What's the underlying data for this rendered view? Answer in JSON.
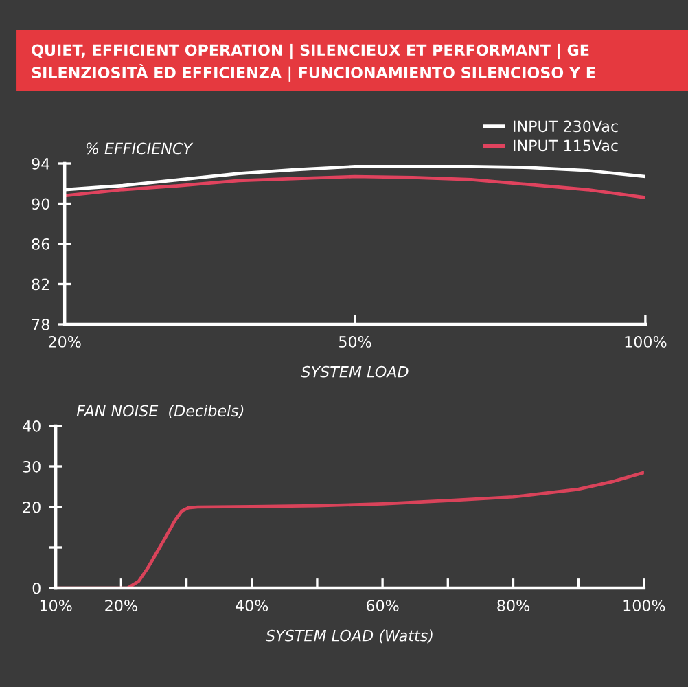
{
  "chart_data": [
    {
      "type": "line",
      "title": "QUIET, EFFICIENT OPERATION | SILENCIEUX ET PERFORMANT | GE",
      "subtitle": "SILENZIOSITÀ ED EFFICIENZA | FUNCIONAMIENTO SILENCIOSO Y E",
      "ylabel": "% EFFICIENCY",
      "xlabel": "SYSTEM LOAD",
      "categories": [
        "20%",
        null,
        null,
        null,
        null,
        "50%",
        null,
        null,
        null,
        null,
        "100%"
      ],
      "series": [
        {
          "name": "INPUT 230Vac",
          "color": "#ffffff",
          "values": [
            91.4,
            91.8,
            92.4,
            93.0,
            93.4,
            93.7,
            93.7,
            93.7,
            93.6,
            93.3,
            92.7
          ]
        },
        {
          "name": "INPUT 115Vac",
          "color": "#e0435e",
          "values": [
            90.8,
            91.4,
            91.8,
            92.3,
            92.5,
            92.7,
            92.6,
            92.4,
            91.9,
            91.4,
            90.6
          ]
        }
      ],
      "ylim": [
        78,
        94
      ],
      "yticks": [
        78,
        82,
        86,
        90,
        94
      ],
      "legend": "top right",
      "line_style": "solid",
      "grid": false
    },
    {
      "type": "line",
      "ylabel": "FAN NOISE  (Decibels)",
      "xlabel": "SYSTEM LOAD (Watts)",
      "x": [
        10,
        15,
        20,
        21,
        22.7,
        24.1,
        25.5,
        26.9,
        28.3,
        29.3,
        30.3,
        31.7,
        40,
        50,
        60,
        70,
        80,
        90,
        95,
        100
      ],
      "series": [
        {
          "color": "#d9435a",
          "values": [
            0,
            0,
            0,
            0,
            1.7,
            5.0,
            8.9,
            12.8,
            16.8,
            19.0,
            19.8,
            20.0,
            20.1,
            20.3,
            20.8,
            21.6,
            22.5,
            24.4,
            26.2,
            28.5
          ]
        }
      ],
      "xlim": [
        10,
        100
      ],
      "xticks": [
        {
          "value": 10,
          "label": "10%"
        },
        {
          "value": 20,
          "label": "20%"
        },
        {
          "value": 30,
          "label": null
        },
        {
          "value": 40,
          "label": "40%"
        },
        {
          "value": 50,
          "label": null
        },
        {
          "value": 60,
          "label": "60%"
        },
        {
          "value": 70,
          "label": null
        },
        {
          "value": 80,
          "label": "80%"
        },
        {
          "value": 90,
          "label": null
        },
        {
          "value": 100,
          "label": "100%"
        }
      ],
      "ylim": [
        0,
        40
      ],
      "yticks": [
        0,
        {
          "value": 10,
          "label": null
        },
        20,
        30,
        40
      ],
      "line_style": "solid",
      "grid": false
    }
  ]
}
